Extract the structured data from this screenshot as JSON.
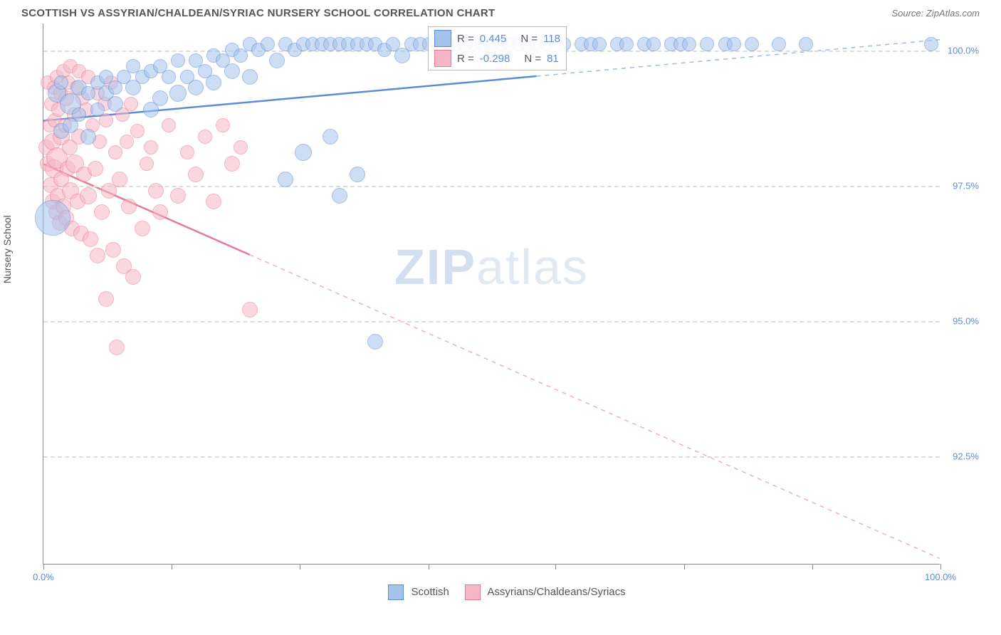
{
  "header": {
    "title": "SCOTTISH VS ASSYRIAN/CHALDEAN/SYRIAC NURSERY SCHOOL CORRELATION CHART",
    "source": "Source: ZipAtlas.com"
  },
  "chart": {
    "y_axis_label": "Nursery School",
    "watermark_zip": "ZIP",
    "watermark_atlas": "atlas",
    "xlim": [
      0,
      100
    ],
    "ylim": [
      90.5,
      100.5
    ],
    "x_ticks": [
      0,
      14.3,
      28.6,
      42.9,
      57.1,
      71.4,
      85.7,
      100
    ],
    "x_tick_labels": {
      "0": "0.0%",
      "100": "100.0%"
    },
    "y_gridlines": [
      92.5,
      95.0,
      97.5,
      100.0
    ],
    "y_tick_labels": {
      "92.5": "92.5%",
      "95.0": "95.0%",
      "97.5": "97.5%",
      "100.0": "100.0%"
    },
    "grid_color": "#dddddd",
    "axis_color": "#888888",
    "tick_label_color": "#5b8dd6",
    "series": {
      "scottish": {
        "label": "Scottish",
        "fill": "#a3c3ec",
        "stroke": "#5b8dd6",
        "opacity": 0.55,
        "R": "0.445",
        "N": "118",
        "trend": {
          "x1": 0,
          "y1": 98.7,
          "x2": 100,
          "y2": 100.2,
          "solid_until": 55
        },
        "points": [
          [
            1,
            96.9,
            24
          ],
          [
            1.5,
            99.2,
            12
          ],
          [
            2,
            98.5,
            10
          ],
          [
            2,
            99.4,
            9
          ],
          [
            3,
            99.0,
            14
          ],
          [
            3,
            98.6,
            10
          ],
          [
            4,
            99.3,
            10
          ],
          [
            4,
            98.8,
            9
          ],
          [
            5,
            99.2,
            9
          ],
          [
            5,
            98.4,
            10
          ],
          [
            6,
            99.4,
            9
          ],
          [
            6,
            98.9,
            9
          ],
          [
            7,
            99.2,
            10
          ],
          [
            7,
            99.5,
            9
          ],
          [
            8,
            99.3,
            9
          ],
          [
            8,
            99.0,
            10
          ],
          [
            9,
            99.5,
            9
          ],
          [
            10,
            99.3,
            10
          ],
          [
            10,
            99.7,
            9
          ],
          [
            11,
            99.5,
            9
          ],
          [
            12,
            98.9,
            10
          ],
          [
            12,
            99.6,
            9
          ],
          [
            13,
            99.7,
            9
          ],
          [
            13,
            99.1,
            10
          ],
          [
            14,
            99.5,
            9
          ],
          [
            15,
            99.2,
            11
          ],
          [
            15,
            99.8,
            9
          ],
          [
            16,
            99.5,
            9
          ],
          [
            17,
            99.8,
            9
          ],
          [
            17,
            99.3,
            10
          ],
          [
            18,
            99.6,
            9
          ],
          [
            19,
            99.9,
            9
          ],
          [
            19,
            99.4,
            10
          ],
          [
            20,
            99.8,
            9
          ],
          [
            21,
            99.6,
            10
          ],
          [
            21,
            100.0,
            9
          ],
          [
            22,
            99.9,
            9
          ],
          [
            23,
            100.1,
            9
          ],
          [
            23,
            99.5,
            10
          ],
          [
            24,
            100.0,
            9
          ],
          [
            25,
            100.1,
            9
          ],
          [
            26,
            99.8,
            10
          ],
          [
            27,
            100.1,
            9
          ],
          [
            27,
            97.6,
            10
          ],
          [
            28,
            100.0,
            9
          ],
          [
            29,
            100.1,
            9
          ],
          [
            29,
            98.1,
            11
          ],
          [
            30,
            100.1,
            9
          ],
          [
            31,
            100.1,
            9
          ],
          [
            32,
            98.4,
            10
          ],
          [
            32,
            100.1,
            9
          ],
          [
            33,
            100.1,
            9
          ],
          [
            33,
            97.3,
            10
          ],
          [
            34,
            100.1,
            9
          ],
          [
            35,
            97.7,
            10
          ],
          [
            35,
            100.1,
            9
          ],
          [
            36,
            100.1,
            9
          ],
          [
            37,
            94.6,
            10
          ],
          [
            37,
            100.1,
            9
          ],
          [
            38,
            100.0,
            9
          ],
          [
            39,
            100.1,
            9
          ],
          [
            40,
            99.9,
            10
          ],
          [
            41,
            100.1,
            9
          ],
          [
            42,
            100.1,
            9
          ],
          [
            43,
            100.1,
            9
          ],
          [
            44,
            100.1,
            9
          ],
          [
            45,
            100.1,
            9
          ],
          [
            46,
            100.1,
            9
          ],
          [
            47,
            100.1,
            9
          ],
          [
            48,
            100.1,
            9
          ],
          [
            49,
            100.1,
            9
          ],
          [
            50,
            100.1,
            9
          ],
          [
            51,
            100.1,
            9
          ],
          [
            52,
            100.1,
            9
          ],
          [
            53,
            100.1,
            9
          ],
          [
            54,
            100.1,
            9
          ],
          [
            55,
            100.1,
            9
          ],
          [
            56,
            100.1,
            9
          ],
          [
            58,
            100.1,
            9
          ],
          [
            60,
            100.1,
            9
          ],
          [
            61,
            100.1,
            9
          ],
          [
            62,
            100.1,
            9
          ],
          [
            64,
            100.1,
            9
          ],
          [
            65,
            100.1,
            9
          ],
          [
            67,
            100.1,
            9
          ],
          [
            68,
            100.1,
            9
          ],
          [
            70,
            100.1,
            9
          ],
          [
            71,
            100.1,
            9
          ],
          [
            72,
            100.1,
            9
          ],
          [
            74,
            100.1,
            9
          ],
          [
            76,
            100.1,
            9
          ],
          [
            77,
            100.1,
            9
          ],
          [
            79,
            100.1,
            9
          ],
          [
            82,
            100.1,
            9
          ],
          [
            85,
            100.1,
            9
          ],
          [
            99,
            100.1,
            9
          ]
        ]
      },
      "assyrian": {
        "label": "Assyrians/Chaldeans/Syriacs",
        "fill": "#f7b6c5",
        "stroke": "#e77a95",
        "opacity": 0.55,
        "R": "-0.298",
        "N": "81",
        "trend": {
          "x1": 0,
          "y1": 97.9,
          "x2": 100,
          "y2": 90.6,
          "solid_until": 23
        },
        "points": [
          [
            0.3,
            98.2,
            10
          ],
          [
            0.5,
            97.9,
            10
          ],
          [
            0.5,
            99.4,
            9
          ],
          [
            0.7,
            98.6,
            9
          ],
          [
            0.8,
            97.5,
            10
          ],
          [
            0.9,
            99.0,
            9
          ],
          [
            1.0,
            98.3,
            11
          ],
          [
            1.0,
            97.2,
            10
          ],
          [
            1.2,
            99.3,
            9
          ],
          [
            1.2,
            97.8,
            12
          ],
          [
            1.3,
            98.7,
            9
          ],
          [
            1.4,
            97.0,
            10
          ],
          [
            1.5,
            99.5,
            9
          ],
          [
            1.5,
            98.0,
            14
          ],
          [
            1.6,
            97.3,
            10
          ],
          [
            1.7,
            98.9,
            9
          ],
          [
            1.8,
            96.8,
            10
          ],
          [
            1.9,
            99.2,
            9
          ],
          [
            2.0,
            97.6,
            10
          ],
          [
            2.0,
            98.4,
            11
          ],
          [
            2.2,
            99.6,
            9
          ],
          [
            2.2,
            97.1,
            10
          ],
          [
            2.4,
            98.6,
            9
          ],
          [
            2.5,
            99.1,
            10
          ],
          [
            2.5,
            96.9,
            10
          ],
          [
            2.7,
            97.8,
            10
          ],
          [
            2.8,
            99.4,
            9
          ],
          [
            2.9,
            98.2,
            10
          ],
          [
            3.0,
            97.4,
            11
          ],
          [
            3.0,
            99.7,
            9
          ],
          [
            3.2,
            96.7,
            10
          ],
          [
            3.4,
            98.8,
            9
          ],
          [
            3.5,
            97.9,
            12
          ],
          [
            3.7,
            99.3,
            9
          ],
          [
            3.8,
            97.2,
            10
          ],
          [
            4.0,
            98.4,
            10
          ],
          [
            4.0,
            99.6,
            9
          ],
          [
            4.2,
            96.6,
            10
          ],
          [
            4.4,
            99.1,
            9
          ],
          [
            4.5,
            97.7,
            10
          ],
          [
            4.8,
            98.9,
            9
          ],
          [
            5.0,
            97.3,
            11
          ],
          [
            5.0,
            99.5,
            9
          ],
          [
            5.2,
            96.5,
            10
          ],
          [
            5.5,
            98.6,
            9
          ],
          [
            5.8,
            97.8,
            10
          ],
          [
            6.0,
            99.2,
            9
          ],
          [
            6.0,
            96.2,
            10
          ],
          [
            6.3,
            98.3,
            9
          ],
          [
            6.5,
            97.0,
            10
          ],
          [
            6.8,
            99.0,
            9
          ],
          [
            7.0,
            95.4,
            10
          ],
          [
            7.0,
            98.7,
            9
          ],
          [
            7.3,
            97.4,
            10
          ],
          [
            7.5,
            99.4,
            9
          ],
          [
            7.8,
            96.3,
            10
          ],
          [
            8.0,
            98.1,
            9
          ],
          [
            8.2,
            94.5,
            10
          ],
          [
            8.5,
            97.6,
            10
          ],
          [
            8.8,
            98.8,
            9
          ],
          [
            9.0,
            96.0,
            10
          ],
          [
            9.3,
            98.3,
            9
          ],
          [
            9.5,
            97.1,
            10
          ],
          [
            9.8,
            99.0,
            9
          ],
          [
            10.0,
            95.8,
            10
          ],
          [
            10.5,
            98.5,
            9
          ],
          [
            11.0,
            96.7,
            10
          ],
          [
            11.5,
            97.9,
            9
          ],
          [
            12.0,
            98.2,
            9
          ],
          [
            12.5,
            97.4,
            10
          ],
          [
            13.0,
            97.0,
            10
          ],
          [
            14.0,
            98.6,
            9
          ],
          [
            15.0,
            97.3,
            10
          ],
          [
            16.0,
            98.1,
            9
          ],
          [
            17.0,
            97.7,
            10
          ],
          [
            18.0,
            98.4,
            9
          ],
          [
            19.0,
            97.2,
            10
          ],
          [
            20.0,
            98.6,
            9
          ],
          [
            21.0,
            97.9,
            10
          ],
          [
            22.0,
            98.2,
            9
          ],
          [
            23.0,
            95.2,
            10
          ]
        ]
      }
    },
    "legend_top": {
      "R_label": "R =",
      "N_label": "N ="
    }
  }
}
